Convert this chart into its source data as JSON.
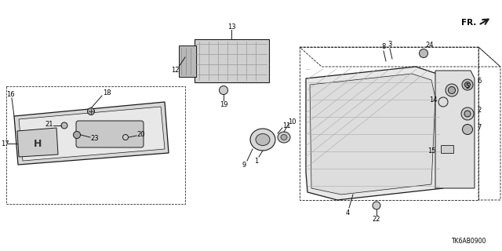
{
  "part_code": "TK6AB0900",
  "bg": "#ffffff",
  "lc": "#1a1a1a",
  "tc": "#000000",
  "fs": 6.0
}
